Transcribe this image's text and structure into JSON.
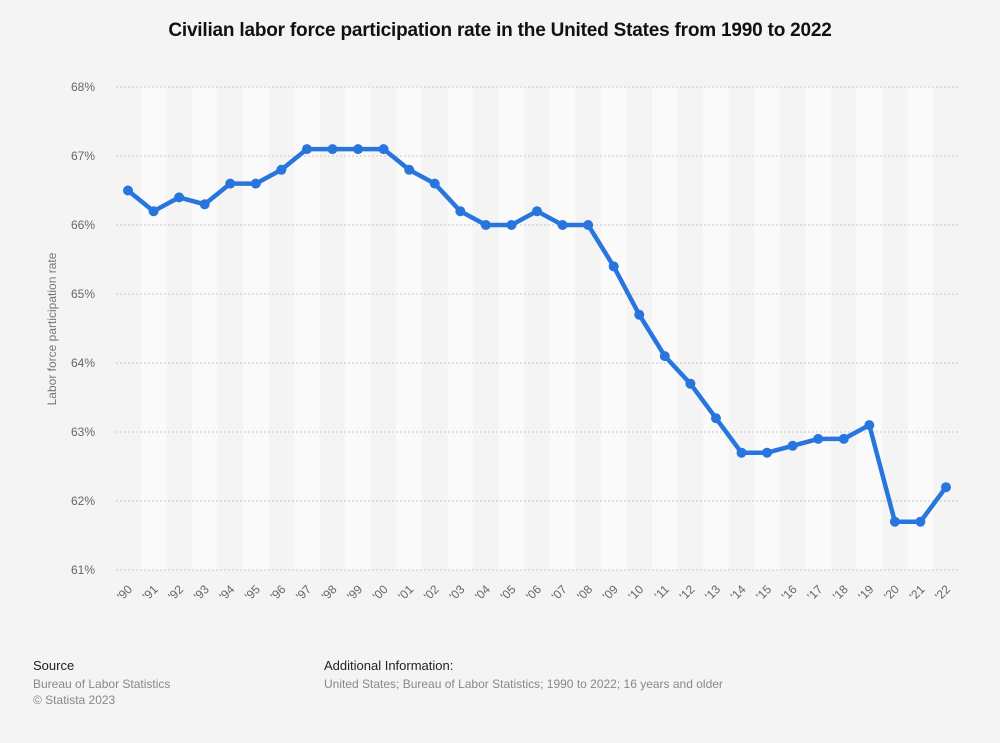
{
  "chart_data": {
    "type": "line",
    "title": "Civilian labor force participation rate in the United States from 1990 to 2022",
    "xlabel": "",
    "ylabel": "Labor force participation rate",
    "categories": [
      "'90",
      "'91",
      "'92",
      "'93",
      "'94",
      "'95",
      "'96",
      "'97",
      "'98",
      "'99",
      "'00",
      "'01",
      "'02",
      "'03",
      "'04",
      "'05",
      "'06",
      "'07",
      "'08",
      "'09",
      "'10",
      "'11",
      "'12",
      "'13",
      "'14",
      "'15",
      "'16",
      "'17",
      "'18",
      "'19",
      "'20",
      "'21",
      "'22"
    ],
    "series": [
      {
        "name": "Labor force participation rate",
        "color": "#2876dd",
        "values": [
          66.5,
          66.2,
          66.4,
          66.3,
          66.6,
          66.6,
          66.8,
          67.1,
          67.1,
          67.1,
          67.1,
          66.8,
          66.6,
          66.2,
          66.0,
          66.0,
          66.2,
          66.0,
          66.0,
          65.4,
          64.7,
          64.1,
          63.7,
          63.2,
          62.7,
          62.7,
          62.8,
          62.9,
          62.9,
          63.1,
          61.7,
          61.7,
          62.2
        ]
      }
    ],
    "ylim": [
      61,
      68
    ],
    "yticks": [
      61,
      62,
      63,
      64,
      65,
      66,
      67,
      68
    ],
    "ytick_labels": [
      "61%",
      "62%",
      "63%",
      "64%",
      "65%",
      "66%",
      "67%",
      "68%"
    ],
    "grid": true,
    "legend": "none"
  },
  "footer": {
    "source_heading": "Source",
    "source_lines": [
      "Bureau of Labor Statistics",
      "© Statista 2023"
    ],
    "additional_heading": "Additional Information:",
    "additional_text": "United States; Bureau of Labor Statistics; 1990 to 2022; 16 years and older"
  }
}
